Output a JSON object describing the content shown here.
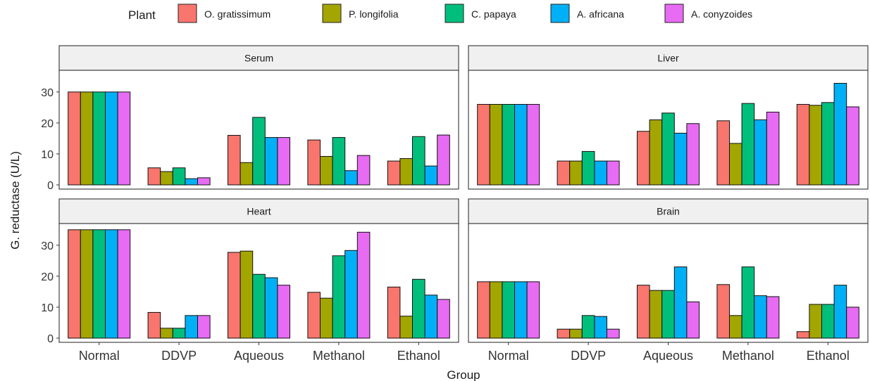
{
  "chart_data": {
    "type": "bar",
    "xlabel": "Group",
    "ylabel": "G. reductase (U/L)",
    "ylim": [
      0,
      37
    ],
    "yticks": [
      0,
      10,
      20,
      30
    ],
    "categories": [
      "Normal",
      "DDVP",
      "Aqueous",
      "Methanol",
      "Ethanol"
    ],
    "legend": {
      "title": "Plant",
      "position": "top",
      "entries": [
        "O. gratissimum",
        "P. longifolia",
        "C. papaya",
        "A. africana",
        "A. conyzoides"
      ]
    },
    "colors": [
      "#f8766d",
      "#a3a500",
      "#00bf7d",
      "#00b0f6",
      "#e76bf3"
    ],
    "panels": [
      {
        "name": "Serum",
        "series": [
          {
            "name": "O. gratissimum",
            "values": [
              30,
              5.5,
              16,
              14.5,
              7.7
            ]
          },
          {
            "name": "P. longifolia",
            "values": [
              30,
              4.3,
              7.2,
              9.2,
              8.5
            ]
          },
          {
            "name": "C. papaya",
            "values": [
              30,
              5.5,
              21.8,
              15.3,
              15.6
            ]
          },
          {
            "name": "A. africana",
            "values": [
              30,
              2,
              15.3,
              4.6,
              6.1
            ]
          },
          {
            "name": "A. conyzoides",
            "values": [
              30,
              2.3,
              15.3,
              9.5,
              16.1
            ]
          }
        ]
      },
      {
        "name": "Liver",
        "series": [
          {
            "name": "O. gratissimum",
            "values": [
              26,
              7.7,
              17.3,
              20.7,
              26
            ]
          },
          {
            "name": "P. longifolia",
            "values": [
              26,
              7.7,
              21,
              13.4,
              25.7
            ]
          },
          {
            "name": "C. papaya",
            "values": [
              26,
              10.8,
              23.2,
              26.3,
              26.6
            ]
          },
          {
            "name": "A. africana",
            "values": [
              26,
              7.7,
              16.7,
              21,
              32.8
            ]
          },
          {
            "name": "A. conyzoides",
            "values": [
              26,
              7.7,
              19.8,
              23.5,
              25.2
            ]
          }
        ]
      },
      {
        "name": "Heart",
        "series": [
          {
            "name": "O. gratissimum",
            "values": [
              35,
              8.3,
              27.7,
              14.8,
              16.5
            ]
          },
          {
            "name": "P. longifolia",
            "values": [
              35,
              3.2,
              28.1,
              12.9,
              7.1
            ]
          },
          {
            "name": "C. papaya",
            "values": [
              35,
              3.2,
              20.6,
              26.6,
              19
            ]
          },
          {
            "name": "A. africana",
            "values": [
              35,
              7.3,
              19.5,
              28.3,
              13.9
            ]
          },
          {
            "name": "A. conyzoides",
            "values": [
              35,
              7.3,
              17.1,
              34.2,
              12.5
            ]
          }
        ]
      },
      {
        "name": "Brain",
        "series": [
          {
            "name": "O. gratissimum",
            "values": [
              18.2,
              2.9,
              17.1,
              17.3,
              2.1
            ]
          },
          {
            "name": "P. longifolia",
            "values": [
              18.2,
              2.9,
              15.4,
              7.3,
              10.9
            ]
          },
          {
            "name": "C. papaya",
            "values": [
              18.2,
              7.3,
              15.4,
              23,
              10.9
            ]
          },
          {
            "name": "A. africana",
            "values": [
              18.2,
              7,
              23,
              13.7,
              17.1
            ]
          },
          {
            "name": "A. conyzoides",
            "values": [
              18.2,
              2.9,
              11.7,
              13.4,
              10
            ]
          }
        ]
      }
    ]
  }
}
